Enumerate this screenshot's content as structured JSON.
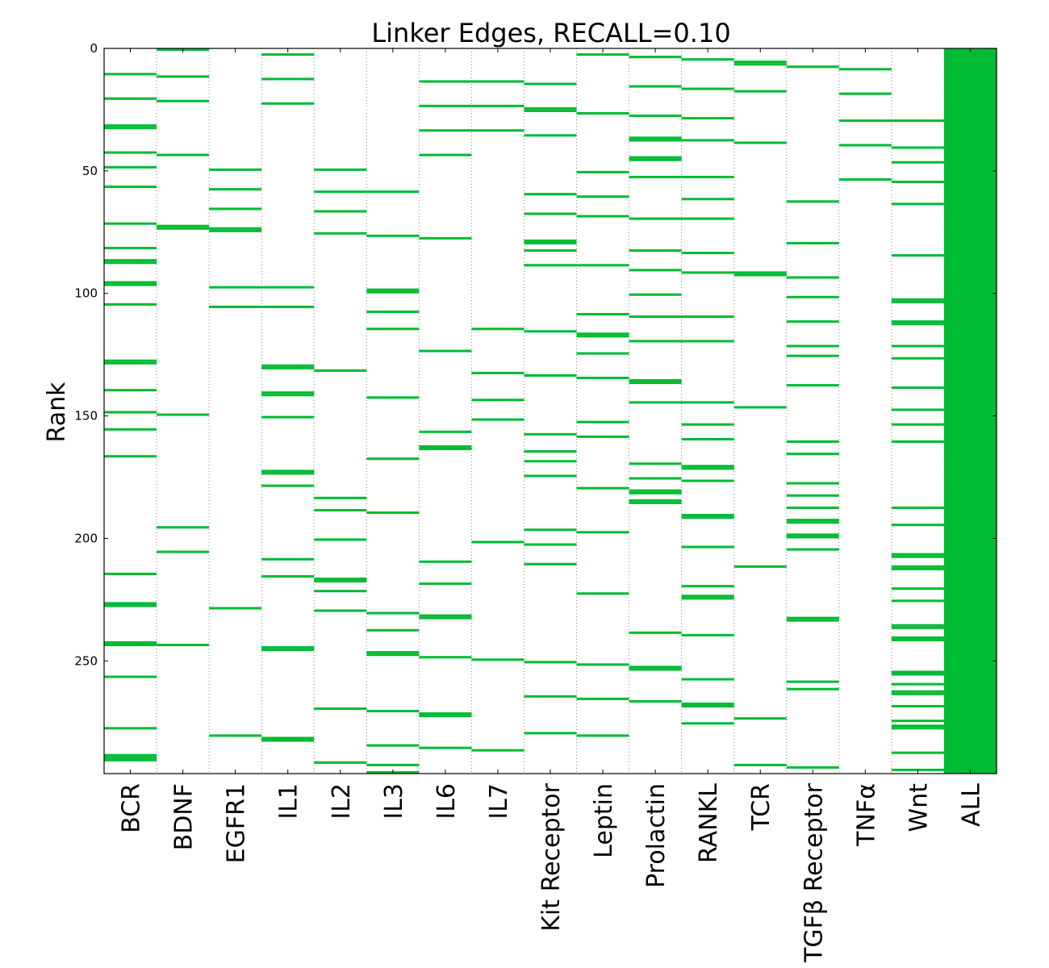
{
  "chart_data": {
    "type": "heatmap",
    "title": "Linker Edges, RECALL=0.10",
    "xlabel": "",
    "ylabel": "Rank",
    "ylim": [
      0,
      296
    ],
    "y_inverted": true,
    "yticks": [
      0,
      50,
      100,
      150,
      200,
      250
    ],
    "grid": "vertical dotted separators between columns",
    "mark_color": "#00bb33",
    "categories": [
      "BCR",
      "BDNF",
      "EGFR1",
      "IL1",
      "IL2",
      "IL3",
      "IL6",
      "IL7",
      "Kit Receptor",
      "Leptin",
      "Prolactin",
      "RANKL",
      "TCR",
      "TGFβ Receptor",
      "TNFα",
      "Wnt",
      "ALL"
    ],
    "series": [
      {
        "category": "BCR",
        "ranks": [
          10,
          20,
          31,
          32,
          42,
          48,
          56,
          71,
          81,
          86,
          87,
          95,
          96,
          104,
          127,
          128,
          139,
          148,
          155,
          166,
          214,
          226,
          227,
          242,
          243,
          256,
          277,
          288,
          289,
          290
        ]
      },
      {
        "category": "BDNF",
        "ranks": [
          0,
          11,
          21,
          43,
          72,
          73,
          149,
          195,
          205,
          243
        ]
      },
      {
        "category": "EGFR1",
        "ranks": [
          49,
          57,
          65,
          73,
          74,
          97,
          105,
          228,
          280
        ]
      },
      {
        "category": "IL1",
        "ranks": [
          2,
          12,
          22,
          97,
          105,
          129,
          130,
          140,
          141,
          150,
          172,
          173,
          178,
          208,
          215,
          244,
          245,
          281,
          282
        ]
      },
      {
        "category": "IL2",
        "ranks": [
          49,
          58,
          66,
          75,
          131,
          183,
          188,
          200,
          216,
          217,
          221,
          229,
          269,
          291
        ]
      },
      {
        "category": "IL3",
        "ranks": [
          58,
          76,
          98,
          99,
          107,
          114,
          142,
          167,
          189,
          230,
          237,
          246,
          247,
          270,
          284,
          292,
          295
        ]
      },
      {
        "category": "IL6",
        "ranks": [
          13,
          23,
          33,
          43,
          77,
          123,
          156,
          162,
          163,
          209,
          218,
          231,
          232,
          248,
          271,
          272,
          285
        ]
      },
      {
        "category": "IL7",
        "ranks": [
          13,
          23,
          33,
          114,
          132,
          143,
          151,
          201,
          249,
          286
        ]
      },
      {
        "category": "Kit Receptor",
        "ranks": [
          14,
          24,
          25,
          35,
          59,
          67,
          78,
          79,
          82,
          88,
          115,
          133,
          157,
          164,
          168,
          174,
          196,
          202,
          210,
          250,
          264,
          279
        ]
      },
      {
        "category": "Leptin",
        "ranks": [
          2,
          26,
          50,
          60,
          68,
          88,
          108,
          116,
          117,
          124,
          134,
          152,
          158,
          179,
          197,
          222,
          251,
          265,
          280
        ]
      },
      {
        "category": "Prolactin",
        "ranks": [
          3,
          15,
          27,
          36,
          37,
          44,
          45,
          52,
          69,
          82,
          90,
          100,
          109,
          119,
          135,
          136,
          144,
          169,
          175,
          180,
          181,
          184,
          185,
          238,
          252,
          253,
          266
        ]
      },
      {
        "category": "RANKL",
        "ranks": [
          4,
          16,
          28,
          37,
          52,
          61,
          69,
          83,
          91,
          109,
          119,
          144,
          153,
          159,
          170,
          171,
          176,
          190,
          191,
          203,
          219,
          223,
          224,
          239,
          257,
          267,
          268,
          275
        ]
      },
      {
        "category": "TCR",
        "ranks": [
          5,
          6,
          17,
          38,
          91,
          92,
          146,
          211,
          273,
          292
        ]
      },
      {
        "category": "TGFβ Receptor",
        "ranks": [
          7,
          62,
          79,
          93,
          101,
          111,
          121,
          125,
          137,
          160,
          165,
          177,
          182,
          187,
          192,
          193,
          198,
          199,
          204,
          232,
          233,
          258,
          261,
          293
        ]
      },
      {
        "category": "TNFα",
        "ranks": [
          8,
          18,
          29,
          39,
          53
        ]
      },
      {
        "category": "Wnt",
        "ranks": [
          29,
          40,
          46,
          54,
          63,
          84,
          102,
          103,
          111,
          112,
          121,
          126,
          138,
          147,
          153,
          160,
          187,
          194,
          206,
          207,
          211,
          212,
          220,
          225,
          235,
          236,
          240,
          241,
          254,
          255,
          259,
          262,
          263,
          268,
          274,
          276,
          277,
          287,
          294
        ]
      },
      {
        "category": "ALL",
        "filled": [
          0,
          296
        ]
      }
    ]
  }
}
